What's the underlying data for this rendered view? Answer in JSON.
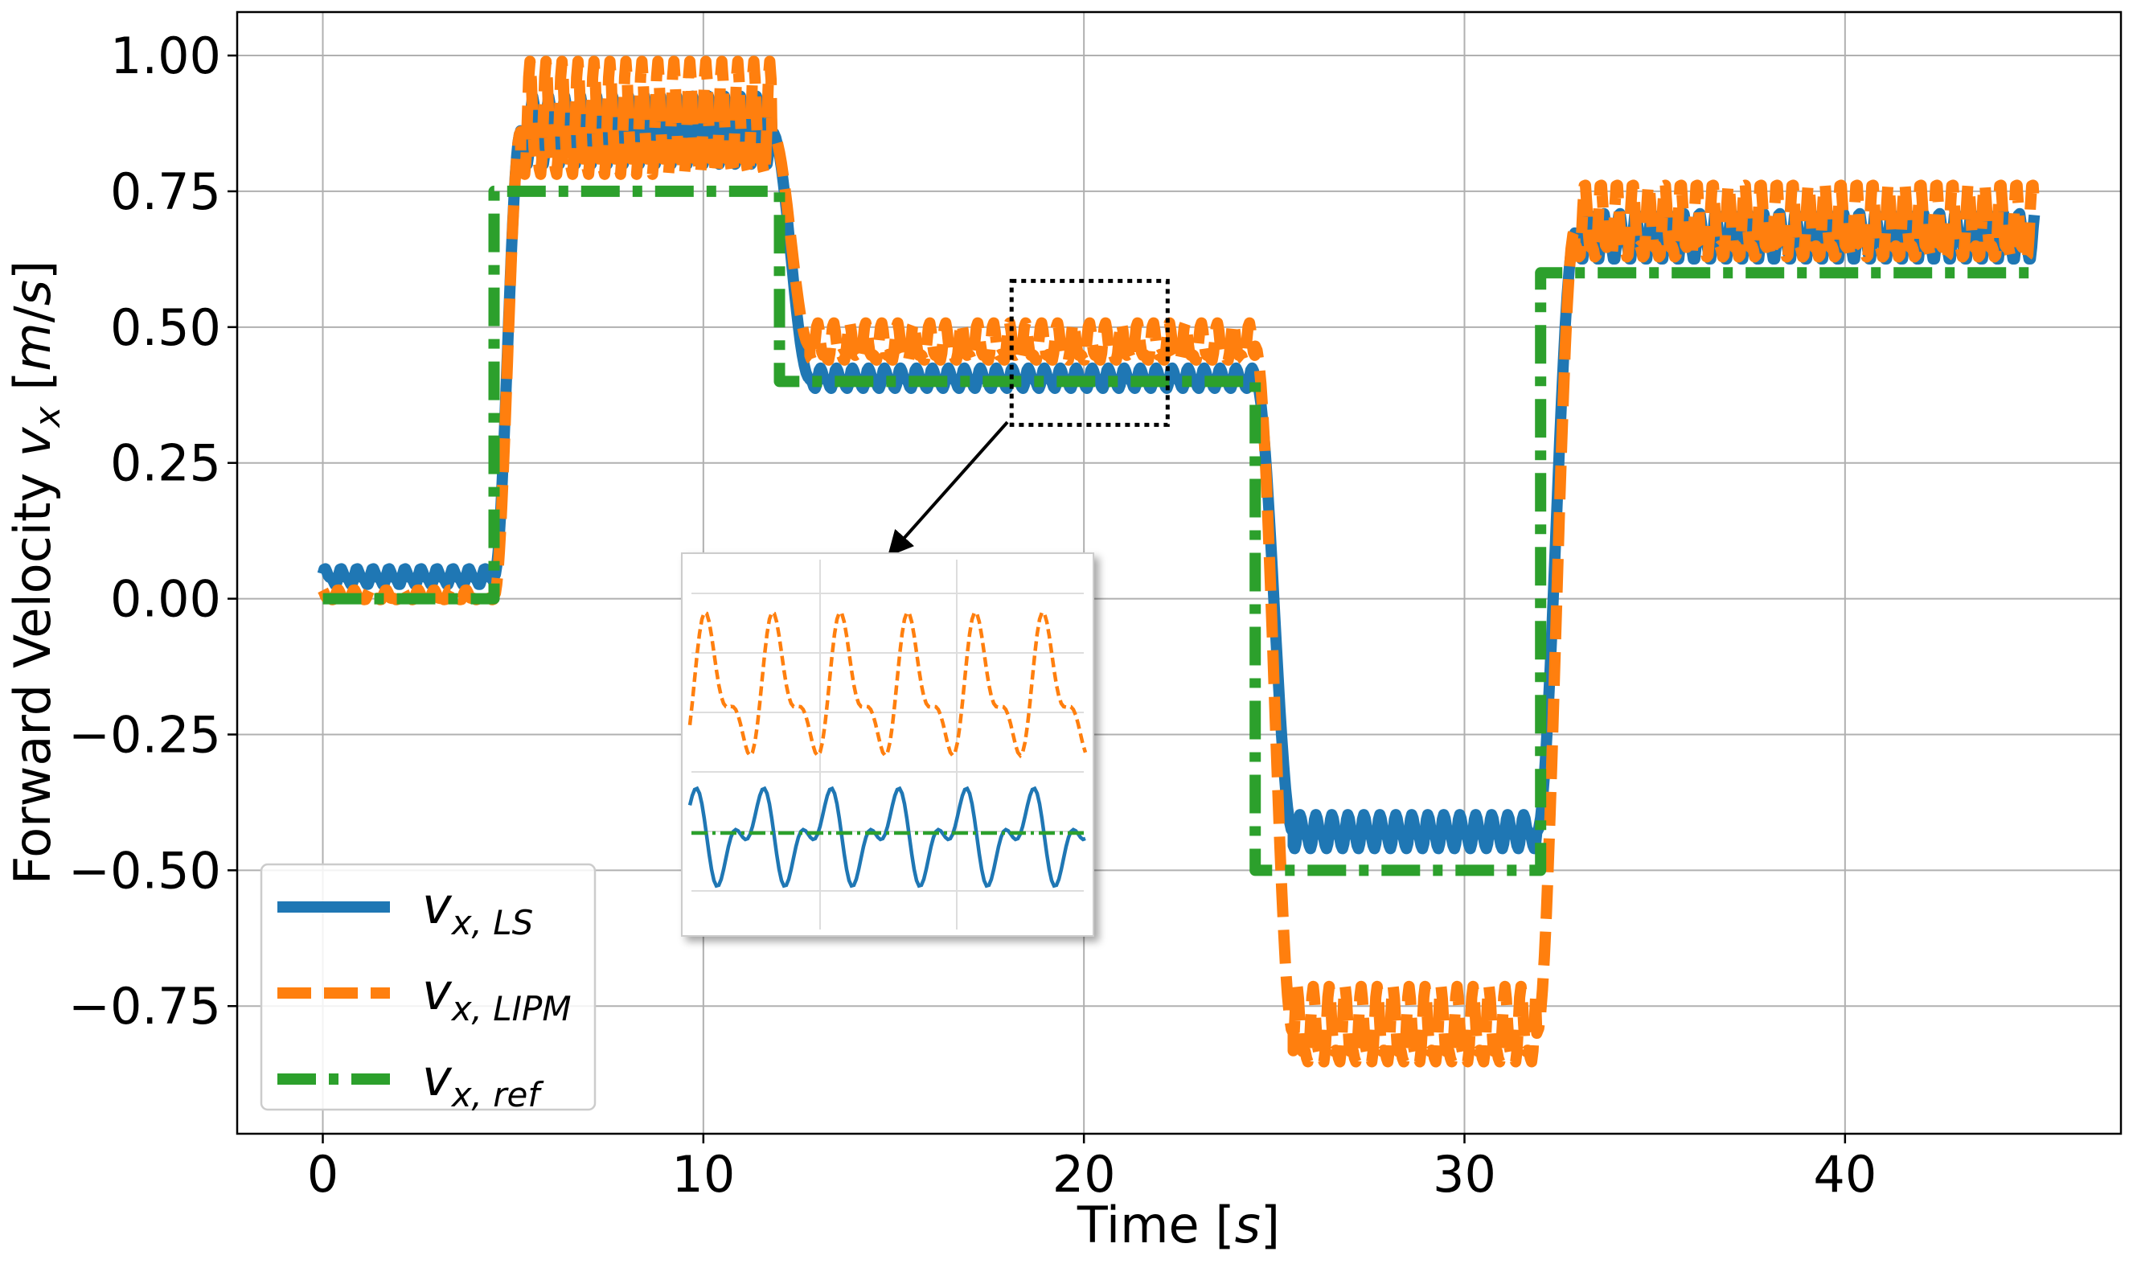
{
  "chart_data": {
    "type": "line",
    "xlabel": "Time [s]",
    "ylabel": "Forward Velocity v_x [m/s]",
    "xlim": [
      -2.25,
      47.25
    ],
    "ylim": [
      -0.985,
      1.08
    ],
    "xticks": [
      0,
      10,
      20,
      30,
      40
    ],
    "xtick_labels": [
      "0",
      "10",
      "20",
      "30",
      "40"
    ],
    "yticks": [
      1.0,
      0.75,
      0.5,
      0.25,
      0.0,
      -0.25,
      -0.5,
      -0.75
    ],
    "ytick_labels": [
      "1.00",
      "0.75",
      "0.50",
      "0.25",
      "0.00",
      "−0.25",
      "−0.50",
      "−0.75"
    ],
    "grid": true,
    "legend_position": "lower-left",
    "series": [
      {
        "name": "v_x,LS",
        "label": "v",
        "subscript": "x, LS",
        "color": "#1f77b4",
        "style": "solid",
        "segments": [
          {
            "t0": 0.0,
            "t1": 4.5,
            "mean": 0.04,
            "osc": 0.012
          },
          {
            "t0": 5.2,
            "t1": 11.8,
            "mean": 0.86,
            "osc": 0.05
          },
          {
            "t0": 12.8,
            "t1": 24.5,
            "mean": 0.405,
            "osc": 0.015
          },
          {
            "t0": 25.5,
            "t1": 31.9,
            "mean": -0.43,
            "osc": 0.025
          },
          {
            "t0": 32.9,
            "t1": 45.0,
            "mean": 0.665,
            "osc": 0.035
          }
        ]
      },
      {
        "name": "v_x,LIPM",
        "label": "v",
        "subscript": "x, LIPM",
        "color": "#ff7f0e",
        "style": "dashed",
        "segments": [
          {
            "t0": 0.0,
            "t1": 4.5,
            "mean": 0.005,
            "osc": 0.008
          },
          {
            "t0": 5.2,
            "t1": 11.8,
            "mean": 0.86,
            "osc": 0.09
          },
          {
            "t0": 12.8,
            "t1": 24.5,
            "mean": 0.465,
            "osc": 0.03
          },
          {
            "t0": 25.5,
            "t1": 31.9,
            "mean": -0.8,
            "osc": 0.06
          },
          {
            "t0": 32.9,
            "t1": 45.0,
            "mean": 0.68,
            "osc": 0.06
          }
        ]
      },
      {
        "name": "v_x,ref",
        "label": "v",
        "subscript": "x, ref",
        "color": "#2ca02c",
        "style": "dashdot",
        "steps": [
          {
            "t0": 0.0,
            "t1": 4.5,
            "value": 0.0
          },
          {
            "t0": 4.5,
            "t1": 12.0,
            "value": 0.75
          },
          {
            "t0": 12.0,
            "t1": 24.5,
            "value": 0.4
          },
          {
            "t0": 24.5,
            "t1": 32.0,
            "value": -0.5
          },
          {
            "t0": 32.0,
            "t1": 45.0,
            "value": 0.6
          }
        ]
      }
    ],
    "zoom_region": {
      "x": [
        18.1,
        22.2
      ],
      "y": [
        0.32,
        0.585
      ]
    },
    "annotation": "inset zoom with arrow"
  }
}
